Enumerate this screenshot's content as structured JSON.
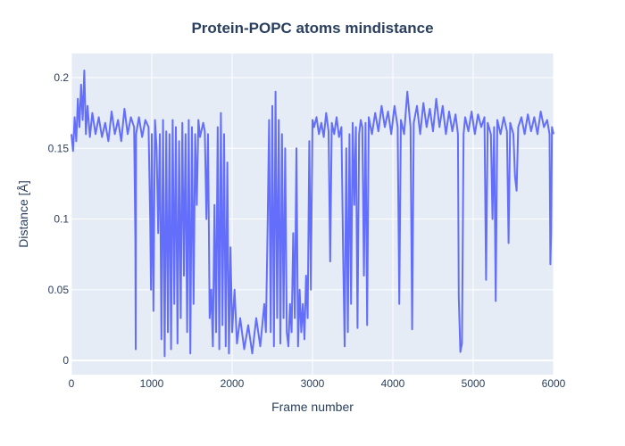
{
  "colors": {
    "plot_bg": "#e5ecf6",
    "grid": "#ffffff",
    "line": "#636efa",
    "text": "#2a3f5f"
  },
  "chart_data": {
    "type": "line",
    "title": "Protein-POPC atoms mindistance",
    "xlabel": "Frame number",
    "ylabel": "Distance [Å]",
    "xlim": [
      0,
      6000
    ],
    "ylim": [
      -0.01,
      0.217
    ],
    "x_ticks": [
      0,
      1000,
      2000,
      3000,
      4000,
      5000,
      6000
    ],
    "x_tick_labels": [
      "0",
      "1000",
      "2000",
      "3000",
      "4000",
      "5000",
      "6000"
    ],
    "y_ticks": [
      0,
      0.05,
      0.1,
      0.15,
      0.2
    ],
    "y_tick_labels": [
      "0",
      "0.05",
      "0.1",
      "0.15",
      "0.2"
    ],
    "grid": true,
    "series": [
      {
        "points": [
          [
            0,
            0.16
          ],
          [
            20,
            0.148
          ],
          [
            40,
            0.172
          ],
          [
            60,
            0.155
          ],
          [
            80,
            0.185
          ],
          [
            100,
            0.165
          ],
          [
            120,
            0.195
          ],
          [
            140,
            0.17
          ],
          [
            160,
            0.205
          ],
          [
            180,
            0.16
          ],
          [
            200,
            0.18
          ],
          [
            230,
            0.158
          ],
          [
            260,
            0.175
          ],
          [
            300,
            0.16
          ],
          [
            340,
            0.172
          ],
          [
            380,
            0.158
          ],
          [
            420,
            0.168
          ],
          [
            460,
            0.155
          ],
          [
            500,
            0.176
          ],
          [
            540,
            0.16
          ],
          [
            580,
            0.17
          ],
          [
            620,
            0.155
          ],
          [
            660,
            0.178
          ],
          [
            700,
            0.16
          ],
          [
            740,
            0.172
          ],
          [
            780,
            0.165
          ],
          [
            795,
            0.085
          ],
          [
            800,
            0.008
          ],
          [
            805,
            0.16
          ],
          [
            840,
            0.172
          ],
          [
            880,
            0.158
          ],
          [
            920,
            0.17
          ],
          [
            960,
            0.165
          ],
          [
            980,
            0.1
          ],
          [
            990,
            0.05
          ],
          [
            1000,
            0.16
          ],
          [
            1020,
            0.035
          ],
          [
            1040,
            0.17
          ],
          [
            1060,
            0.15
          ],
          [
            1080,
            0.09
          ],
          [
            1100,
            0.16
          ],
          [
            1120,
            0.015
          ],
          [
            1140,
            0.17
          ],
          [
            1160,
            0.003
          ],
          [
            1180,
            0.162
          ],
          [
            1200,
            0.02
          ],
          [
            1220,
            0.16
          ],
          [
            1240,
            0.008
          ],
          [
            1260,
            0.17
          ],
          [
            1280,
            0.04
          ],
          [
            1300,
            0.165
          ],
          [
            1320,
            0.012
          ],
          [
            1340,
            0.155
          ],
          [
            1360,
            0.03
          ],
          [
            1380,
            0.168
          ],
          [
            1400,
            0.06
          ],
          [
            1420,
            0.16
          ],
          [
            1440,
            0.02
          ],
          [
            1460,
            0.17
          ],
          [
            1480,
            0.005
          ],
          [
            1500,
            0.165
          ],
          [
            1520,
            0.04
          ],
          [
            1540,
            0.16
          ],
          [
            1560,
            0.11
          ],
          [
            1580,
            0.17
          ],
          [
            1600,
            0.158
          ],
          [
            1640,
            0.168
          ],
          [
            1660,
            0.162
          ],
          [
            1680,
            0.1
          ],
          [
            1700,
            0.16
          ],
          [
            1720,
            0.03
          ],
          [
            1740,
            0.05
          ],
          [
            1760,
            0.01
          ],
          [
            1780,
            0.11
          ],
          [
            1800,
            0.02
          ],
          [
            1820,
            0.165
          ],
          [
            1840,
            0.008
          ],
          [
            1860,
            0.175
          ],
          [
            1880,
            0.025
          ],
          [
            1900,
            0.16
          ],
          [
            1920,
            0.01
          ],
          [
            1940,
            0.14
          ],
          [
            1960,
            0.005
          ],
          [
            1980,
            0.08
          ],
          [
            2000,
            0.02
          ],
          [
            2030,
            0.05
          ],
          [
            2060,
            0.012
          ],
          [
            2100,
            0.03
          ],
          [
            2150,
            0.008
          ],
          [
            2200,
            0.025
          ],
          [
            2250,
            0.005
          ],
          [
            2300,
            0.03
          ],
          [
            2350,
            0.01
          ],
          [
            2400,
            0.04
          ],
          [
            2420,
            0.02
          ],
          [
            2440,
            0.09
          ],
          [
            2460,
            0.17
          ],
          [
            2480,
            0.02
          ],
          [
            2500,
            0.18
          ],
          [
            2520,
            0.01
          ],
          [
            2540,
            0.19
          ],
          [
            2560,
            0.03
          ],
          [
            2580,
            0.17
          ],
          [
            2600,
            0.012
          ],
          [
            2620,
            0.16
          ],
          [
            2640,
            0.03
          ],
          [
            2660,
            0.15
          ],
          [
            2680,
            0.02
          ],
          [
            2700,
            0.01
          ],
          [
            2720,
            0.04
          ],
          [
            2740,
            0.02
          ],
          [
            2760,
            0.09
          ],
          [
            2780,
            0.03
          ],
          [
            2800,
            0.15
          ],
          [
            2820,
            0.01
          ],
          [
            2840,
            0.05
          ],
          [
            2860,
            0.02
          ],
          [
            2880,
            0.04
          ],
          [
            2900,
            0.015
          ],
          [
            2920,
            0.06
          ],
          [
            2940,
            0.03
          ],
          [
            2960,
            0.155
          ],
          [
            2980,
            0.05
          ],
          [
            3000,
            0.17
          ],
          [
            3020,
            0.165
          ],
          [
            3050,
            0.172
          ],
          [
            3080,
            0.16
          ],
          [
            3110,
            0.168
          ],
          [
            3140,
            0.158
          ],
          [
            3170,
            0.175
          ],
          [
            3200,
            0.162
          ],
          [
            3220,
            0.07
          ],
          [
            3240,
            0.168
          ],
          [
            3270,
            0.16
          ],
          [
            3300,
            0.172
          ],
          [
            3330,
            0.158
          ],
          [
            3360,
            0.165
          ],
          [
            3380,
            0.08
          ],
          [
            3400,
            0.01
          ],
          [
            3420,
            0.15
          ],
          [
            3440,
            0.02
          ],
          [
            3460,
            0.16
          ],
          [
            3480,
            0.04
          ],
          [
            3500,
            0.168
          ],
          [
            3520,
            0.11
          ],
          [
            3540,
            0.165
          ],
          [
            3560,
            0.023
          ],
          [
            3580,
            0.16
          ],
          [
            3600,
            0.17
          ],
          [
            3620,
            0.165
          ],
          [
            3640,
            0.06
          ],
          [
            3660,
            0.168
          ],
          [
            3680,
            0.025
          ],
          [
            3700,
            0.172
          ],
          [
            3740,
            0.16
          ],
          [
            3780,
            0.175
          ],
          [
            3820,
            0.162
          ],
          [
            3860,
            0.18
          ],
          [
            3900,
            0.165
          ],
          [
            3940,
            0.176
          ],
          [
            3980,
            0.16
          ],
          [
            4020,
            0.18
          ],
          [
            4060,
            0.165
          ],
          [
            4080,
            0.04
          ],
          [
            4100,
            0.17
          ],
          [
            4140,
            0.16
          ],
          [
            4180,
            0.19
          ],
          [
            4220,
            0.165
          ],
          [
            4240,
            0.022
          ],
          [
            4260,
            0.168
          ],
          [
            4300,
            0.18
          ],
          [
            4340,
            0.16
          ],
          [
            4380,
            0.182
          ],
          [
            4420,
            0.165
          ],
          [
            4460,
            0.178
          ],
          [
            4500,
            0.162
          ],
          [
            4540,
            0.185
          ],
          [
            4580,
            0.165
          ],
          [
            4620,
            0.18
          ],
          [
            4660,
            0.16
          ],
          [
            4700,
            0.176
          ],
          [
            4740,
            0.162
          ],
          [
            4780,
            0.174
          ],
          [
            4810,
            0.16
          ],
          [
            4820,
            0.045
          ],
          [
            4840,
            0.006
          ],
          [
            4860,
            0.012
          ],
          [
            4880,
            0.16
          ],
          [
            4900,
            0.172
          ],
          [
            4940,
            0.162
          ],
          [
            4980,
            0.176
          ],
          [
            5020,
            0.16
          ],
          [
            5060,
            0.174
          ],
          [
            5100,
            0.165
          ],
          [
            5140,
            0.172
          ],
          [
            5160,
            0.057
          ],
          [
            5180,
            0.168
          ],
          [
            5220,
            0.16
          ],
          [
            5240,
            0.1
          ],
          [
            5260,
            0.165
          ],
          [
            5280,
            0.042
          ],
          [
            5300,
            0.17
          ],
          [
            5340,
            0.16
          ],
          [
            5380,
            0.172
          ],
          [
            5420,
            0.162
          ],
          [
            5440,
            0.083
          ],
          [
            5460,
            0.168
          ],
          [
            5500,
            0.16
          ],
          [
            5520,
            0.13
          ],
          [
            5540,
            0.12
          ],
          [
            5560,
            0.165
          ],
          [
            5600,
            0.172
          ],
          [
            5640,
            0.16
          ],
          [
            5680,
            0.174
          ],
          [
            5720,
            0.162
          ],
          [
            5760,
            0.172
          ],
          [
            5800,
            0.16
          ],
          [
            5840,
            0.176
          ],
          [
            5880,
            0.165
          ],
          [
            5920,
            0.17
          ],
          [
            5950,
            0.16
          ],
          [
            5960,
            0.068
          ],
          [
            5970,
            0.09
          ],
          [
            5980,
            0.165
          ],
          [
            6000,
            0.16
          ]
        ]
      }
    ]
  }
}
